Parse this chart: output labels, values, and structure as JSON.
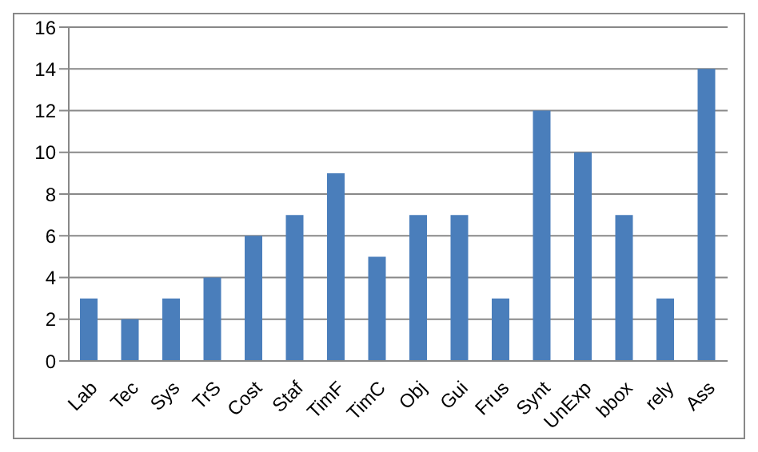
{
  "chart_data": {
    "type": "bar",
    "categories": [
      "Lab",
      "Tec",
      "Sys",
      "TrS",
      "Cost",
      "Staf",
      "TimF",
      "TimC",
      "Obj",
      "Gui",
      "Frus",
      "Synt",
      "UnExp",
      "bbox",
      "rely",
      "Ass"
    ],
    "values": [
      3,
      2,
      3,
      4,
      6,
      7,
      9,
      5,
      7,
      7,
      3,
      12,
      10,
      7,
      3,
      14
    ],
    "color": "#4a7ebb",
    "ylim": [
      0,
      16
    ],
    "yticks": [
      0,
      2,
      4,
      6,
      8,
      10,
      12,
      14,
      16
    ],
    "grid": "y",
    "legend": false
  }
}
